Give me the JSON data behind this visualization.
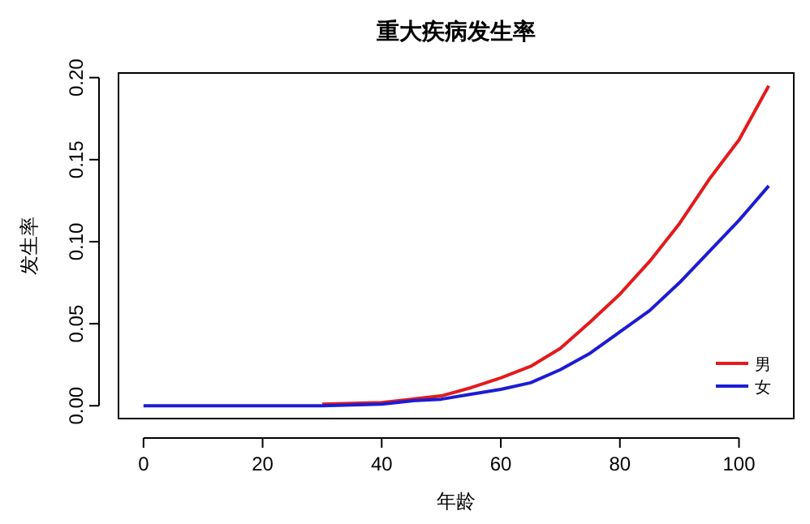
{
  "chart_data": {
    "type": "line",
    "title": "重大疾病发生率",
    "xlabel": "年龄",
    "ylabel": "发生率",
    "x": [
      0,
      10,
      20,
      30,
      40,
      45,
      50,
      55,
      60,
      65,
      70,
      75,
      80,
      85,
      90,
      95,
      100,
      105
    ],
    "xlim": [
      -4.2,
      109.2
    ],
    "ylim": [
      -0.0078,
      0.2028
    ],
    "xticks": [
      0,
      20,
      40,
      60,
      80,
      100
    ],
    "yticks": [
      {
        "value": 0,
        "label": "0.00"
      },
      {
        "value": 0.05,
        "label": "0.05"
      },
      {
        "value": 0.1,
        "label": "0.10"
      },
      {
        "value": 0.15,
        "label": "0.15"
      },
      {
        "value": 0.2,
        "label": "0.20"
      }
    ],
    "series": [
      {
        "name": "男",
        "color": "#e41a1c",
        "values": [
          null,
          null,
          null,
          0.001,
          0.002,
          0.004,
          0.006,
          0.011,
          0.017,
          0.024,
          0.035,
          0.051,
          0.068,
          0.088,
          0.111,
          0.138,
          0.162,
          0.195
        ]
      },
      {
        "name": "女",
        "color": "#1c1cd4",
        "values": [
          0,
          0,
          0,
          0,
          0.001,
          0.003,
          0.004,
          0.007,
          0.01,
          0.014,
          0.022,
          0.032,
          0.045,
          0.058,
          0.075,
          0.094,
          0.113,
          0.134
        ]
      }
    ],
    "legend": "bottom right",
    "grid": false,
    "marker": "none",
    "line_style": "solid"
  }
}
